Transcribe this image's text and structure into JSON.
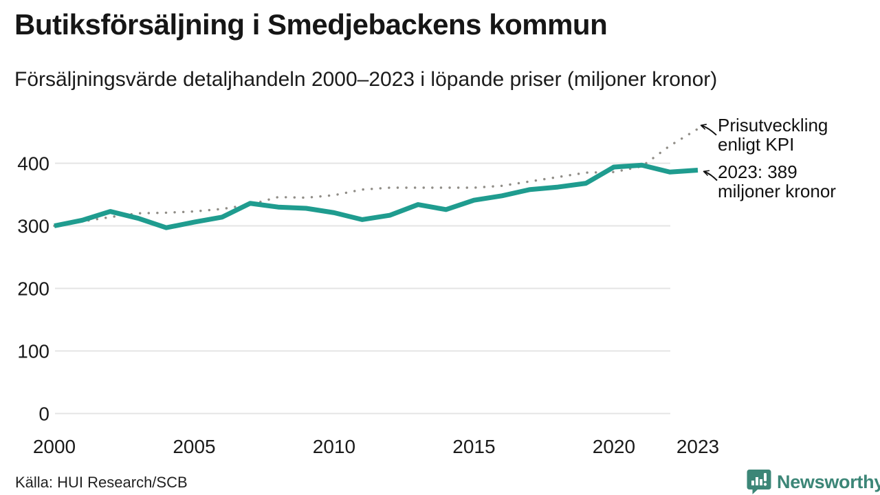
{
  "header": {
    "title": "Butiksförsäljning i Smedjebackens kommun",
    "subtitle": "Försäljningsvärde detaljhandeln 2000–2023 i löpande priser (miljoner kronor)"
  },
  "chart_data": {
    "type": "line",
    "title": "Butiksförsäljning i Smedjebackens kommun",
    "subtitle": "Försäljningsvärde detaljhandeln 2000–2023 i löpande priser (miljoner kronor)",
    "unit": "miljoner kronor",
    "x": [
      2000,
      2001,
      2002,
      2003,
      2004,
      2005,
      2006,
      2007,
      2008,
      2009,
      2010,
      2011,
      2012,
      2013,
      2014,
      2015,
      2016,
      2017,
      2018,
      2019,
      2020,
      2021,
      2022,
      2023
    ],
    "series": [
      {
        "name": "Försäljningsvärde detaljhandeln (löpande priser)",
        "style": "solid",
        "color": "#1f9c8f",
        "values": [
          300,
          309,
          323,
          312,
          297,
          306,
          314,
          336,
          330,
          328,
          321,
          310,
          317,
          334,
          326,
          341,
          348,
          358,
          362,
          368,
          394,
          397,
          386,
          389
        ]
      },
      {
        "name": "Prisutveckling enligt KPI",
        "style": "dotted",
        "color": "#908d87",
        "values": [
          300,
          307,
          314,
          320,
          321,
          323,
          327,
          334,
          346,
          345,
          349,
          358,
          361,
          361,
          361,
          361,
          364,
          371,
          378,
          385,
          386,
          395,
          428,
          455
        ]
      }
    ],
    "y_ticks": [
      0,
      100,
      200,
      300,
      400
    ],
    "x_ticks": [
      2000,
      2005,
      2010,
      2015,
      2020,
      2023
    ],
    "ylim": [
      0,
      460
    ],
    "grid": "horizontal-only",
    "legend_position": "inline-annotations",
    "last_point_label": "2023: 389 miljoner kronor"
  },
  "annotations": {
    "kpi_label": "Prisutveckling enligt KPI",
    "value_label": "2023: 389 miljoner kronor"
  },
  "footer": {
    "source": "Källa: HUI Research/SCB",
    "brand": "Newsworthy",
    "brand_color": "#3c8677"
  },
  "colors": {
    "sales_line": "#1f9c8f",
    "kpi_dots": "#908d87",
    "gridline": "#e4e4e4",
    "arrow": "#111111",
    "text": "#1a1a1a"
  }
}
